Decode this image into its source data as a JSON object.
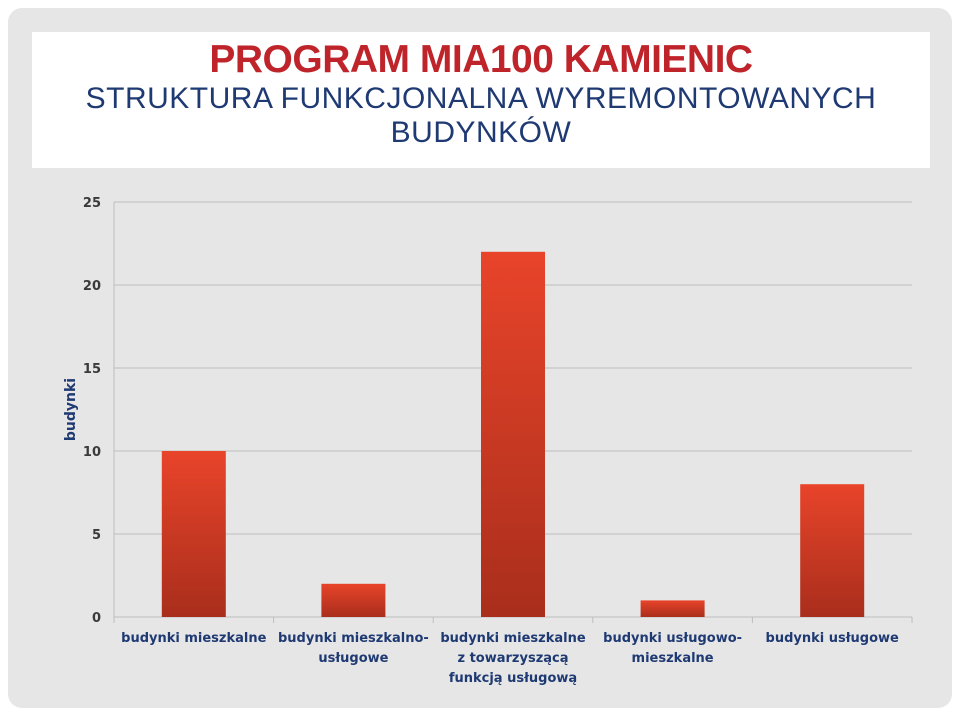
{
  "title": "PROGRAM MIA100 KAMIENIC",
  "subtitle_lines": [
    "STRUKTURA FUNKCJONALNA WYREMONTOWANYCH",
    "BUDYNKÓW"
  ],
  "colors": {
    "title": "#c0242b",
    "subtitle": "#1f3a73",
    "bar_top": "#e8442a",
    "bar_bottom": "#a92e1c",
    "label": "#1f3a73",
    "grid": "#bdbdbd"
  },
  "chart_data": {
    "type": "bar",
    "title": "",
    "xlabel": "",
    "ylabel": "budynki",
    "ylim": [
      0,
      25
    ],
    "yticks": [
      0,
      5,
      10,
      15,
      20,
      25
    ],
    "grid": true,
    "legend": "none",
    "categories": [
      [
        "budynki mieszkalne"
      ],
      [
        "budynki mieszkalno-",
        "usługowe"
      ],
      [
        "budynki mieszkalne",
        "z towarzyszącą",
        "funkcją usługową"
      ],
      [
        "budynki usługowo-",
        "mieszkalne"
      ],
      [
        "budynki usługowe"
      ]
    ],
    "values": [
      10,
      2,
      22,
      1,
      8
    ]
  }
}
